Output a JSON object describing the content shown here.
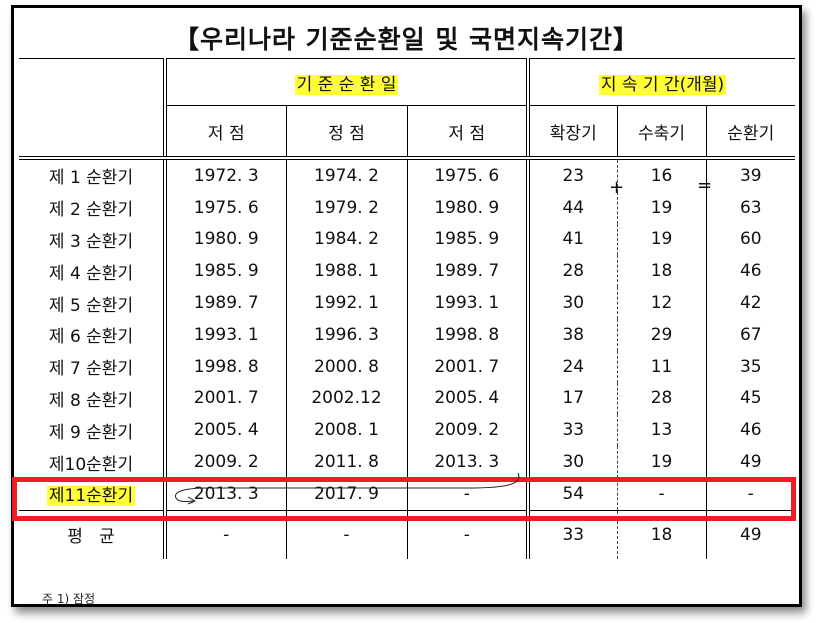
{
  "title": "【우리나라 기준순환일 및 국면지속기간】",
  "header": {
    "group1": "기 준 순 환 일",
    "group2": "지 속 기 간(개월)",
    "cols": [
      "저 점",
      "정 점",
      "저 점",
      "확장기",
      "수축기",
      "순환기"
    ]
  },
  "rows": [
    {
      "label": "제 1 순환기",
      "c1": "1972. 3",
      "c2": "1974. 2",
      "c3": "1975. 6",
      "c4": "23",
      "c5": "16",
      "c6": "39"
    },
    {
      "label": "제 2 순환기",
      "c1": "1975. 6",
      "c2": "1979. 2",
      "c3": "1980. 9",
      "c4": "44",
      "c5": "19",
      "c6": "63"
    },
    {
      "label": "제 3 순환기",
      "c1": "1980. 9",
      "c2": "1984. 2",
      "c3": "1985. 9",
      "c4": "41",
      "c5": "19",
      "c6": "60"
    },
    {
      "label": "제 4 순환기",
      "c1": "1985. 9",
      "c2": "1988. 1",
      "c3": "1989. 7",
      "c4": "28",
      "c5": "18",
      "c6": "46"
    },
    {
      "label": "제 5 순환기",
      "c1": "1989. 7",
      "c2": "1992. 1",
      "c3": "1993. 1",
      "c4": "30",
      "c5": "12",
      "c6": "42"
    },
    {
      "label": "제 6 순환기",
      "c1": "1993. 1",
      "c2": "1996. 3",
      "c3": "1998. 8",
      "c4": "38",
      "c5": "29",
      "c6": "67"
    },
    {
      "label": "제 7 순환기",
      "c1": "1998. 8",
      "c2": "2000. 8",
      "c3": "2001. 7",
      "c4": "24",
      "c5": "11",
      "c6": "35"
    },
    {
      "label": "제 8 순환기",
      "c1": "2001. 7",
      "c2": "2002.12",
      "c3": "2005. 4",
      "c4": "17",
      "c5": "28",
      "c6": "45"
    },
    {
      "label": "제 9 순환기",
      "c1": "2005. 4",
      "c2": "2008. 1",
      "c3": "2009. 2",
      "c4": "33",
      "c5": "13",
      "c6": "46"
    },
    {
      "label": "제10순환기",
      "c1": "2009. 2",
      "c2": "2011. 8",
      "c3": "2013. 3",
      "c4": "30",
      "c5": "19",
      "c6": "49"
    },
    {
      "label": "제11순환기",
      "c1": "2013. 3",
      "c2": "2017. 9",
      "c3": "-",
      "c4": "54",
      "c5": "-",
      "c6": "-"
    }
  ],
  "avg": {
    "label": "평   균",
    "c1": "-",
    "c2": "-",
    "c3": "-",
    "c4": "33",
    "c5": "18",
    "c6": "49"
  },
  "note": "주 1) 잠정",
  "marks": {
    "plus": "+",
    "eq": "="
  },
  "colors": {
    "highlight": "#ffff33",
    "redbox": "#ee1c24"
  }
}
